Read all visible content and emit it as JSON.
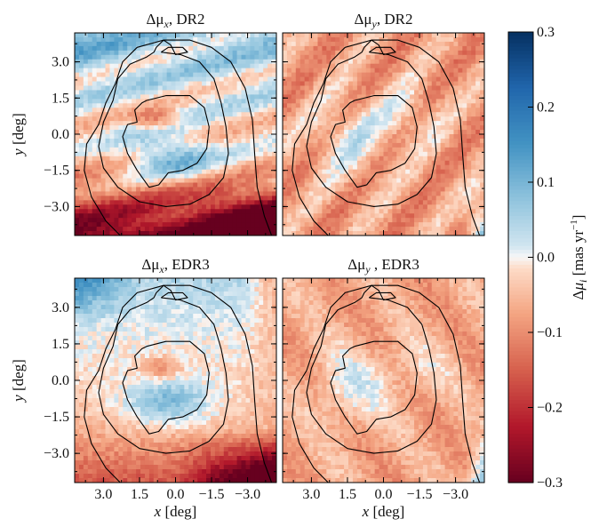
{
  "chart_data": [
    {
      "type": "heatmap",
      "title": "Δμ_x, DR2",
      "title_main": "Δμ",
      "title_sub": "x",
      "title_rest": ", DR2",
      "xlabel": "",
      "ylabel": "y [deg]",
      "xlim": [
        4.2,
        -4.2
      ],
      "ylim": [
        -4.2,
        4.2
      ],
      "xticks": [],
      "yticks": [
        "3.0",
        "1.5",
        "0.0",
        "−1.5",
        "−3.0"
      ],
      "field_pattern": "mu_x_dr2"
    },
    {
      "type": "heatmap",
      "title": "Δμ_y, DR2",
      "title_main": "Δμ",
      "title_sub": "y",
      "title_rest": ", DR2",
      "xlabel": "",
      "ylabel": "",
      "xlim": [
        4.2,
        -4.2
      ],
      "ylim": [
        -4.2,
        4.2
      ],
      "xticks": [],
      "yticks": [],
      "field_pattern": "mu_y_dr2"
    },
    {
      "type": "heatmap",
      "title": "Δμ_x, EDR3",
      "title_main": "Δμ",
      "title_sub": "x",
      "title_rest": ", EDR3",
      "xlabel": "x [deg]",
      "ylabel": "y [deg]",
      "xlim": [
        4.2,
        -4.2
      ],
      "ylim": [
        -4.2,
        4.2
      ],
      "xticks": [
        "3.0",
        "1.5",
        "0.0",
        "−1.5",
        "−3.0"
      ],
      "yticks": [
        "3.0",
        "1.5",
        "0.0",
        "−1.5",
        "−3.0"
      ],
      "field_pattern": "mu_x_edr3"
    },
    {
      "type": "heatmap",
      "title": "Δμ_y , EDR3",
      "title_main": "Δμ",
      "title_sub": "y",
      "title_rest": " , EDR3",
      "xlabel": "x [deg]",
      "ylabel": "",
      "xlim": [
        4.2,
        -4.2
      ],
      "ylim": [
        -4.2,
        4.2
      ],
      "xticks": [
        "3.0",
        "1.5",
        "0.0",
        "−1.5",
        "−3.0"
      ],
      "yticks": [],
      "field_pattern": "mu_y_edr3"
    }
  ],
  "colorbar": {
    "label": "Δμ_i [mas yr^−1]",
    "range": [
      -0.3,
      0.3
    ],
    "ticks": [
      "0.3",
      "0.2",
      "0.1",
      "0.0",
      "−0.1",
      "−0.2",
      "−0.3"
    ],
    "colormap": "RdBu",
    "colors": {
      "low": "#67001f",
      "mid": "#f7f7f7",
      "high": "#053061"
    }
  }
}
